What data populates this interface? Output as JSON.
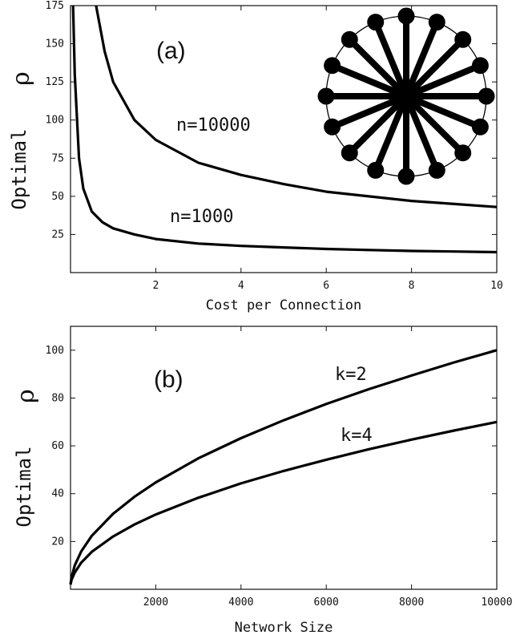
{
  "chart_data": [
    {
      "panel": "(a)",
      "type": "line",
      "xlabel": "Cost per Connection",
      "ylabel": "Optimal",
      "ylabel_symbol": "ρ",
      "xlim": [
        0,
        10
      ],
      "ylim": [
        0,
        175
      ],
      "xticks": [
        2,
        4,
        6,
        8,
        10
      ],
      "yticks": [
        25,
        50,
        75,
        100,
        125,
        150,
        175
      ],
      "grid": false,
      "series": [
        {
          "name": "n=10000",
          "x": [
            0.6,
            0.8,
            1.0,
            1.5,
            2.0,
            3.0,
            4.0,
            5.0,
            6.0,
            7.0,
            8.0,
            9.0,
            10.0
          ],
          "y": [
            175,
            145,
            125,
            100,
            87,
            72,
            64,
            58,
            53,
            50,
            47,
            45,
            43
          ]
        },
        {
          "name": "n=1000",
          "x": [
            0.06,
            0.1,
            0.2,
            0.3,
            0.5,
            0.75,
            1.0,
            1.5,
            2.0,
            3.0,
            4.0,
            5.0,
            6.0,
            7.0,
            8.0,
            9.0,
            10.0
          ],
          "y": [
            175,
            130,
            75,
            55,
            40,
            33,
            29,
            25,
            22,
            19,
            17.5,
            16.5,
            15.5,
            14.8,
            14.2,
            13.8,
            13.4
          ]
        }
      ],
      "annotations": [
        "n=10000",
        "n=1000"
      ],
      "inset": {
        "description_type": "star-network",
        "leaves": 16
      }
    },
    {
      "panel": "(b)",
      "type": "line",
      "xlabel": "Network Size",
      "ylabel": "Optimal",
      "ylabel_symbol": "ρ",
      "xlim": [
        0,
        10000
      ],
      "ylim": [
        0,
        110
      ],
      "xticks": [
        2000,
        4000,
        6000,
        8000,
        10000
      ],
      "yticks": [
        20,
        40,
        60,
        80,
        100
      ],
      "grid": false,
      "series": [
        {
          "name": "k=2",
          "x": [
            0,
            25,
            100,
            250,
            500,
            1000,
            1500,
            2000,
            3000,
            4000,
            5000,
            6000,
            7000,
            8000,
            9000,
            10000
          ],
          "y": [
            2,
            5,
            10,
            15.8,
            22.4,
            31.6,
            38.7,
            44.7,
            54.8,
            63.2,
            70.7,
            77.5,
            83.7,
            89.4,
            94.9,
            100
          ]
        },
        {
          "name": "k=4",
          "x": [
            0,
            25,
            100,
            250,
            500,
            1000,
            1500,
            2000,
            3000,
            4000,
            5000,
            6000,
            7000,
            8000,
            9000,
            10000
          ],
          "y": [
            2,
            4,
            7,
            11.1,
            15.7,
            22.1,
            27.1,
            31.3,
            38.3,
            44.3,
            49.5,
            54.2,
            58.6,
            62.6,
            66.4,
            70
          ]
        }
      ],
      "annotations": [
        "k=2",
        "k=4"
      ]
    }
  ],
  "labels": {
    "a_tag": "(a)",
    "b_tag": "(b)",
    "a_curve1": "n=10000",
    "a_curve2": "n=1000",
    "b_curve1": "k=2",
    "b_curve2": "k=4"
  }
}
